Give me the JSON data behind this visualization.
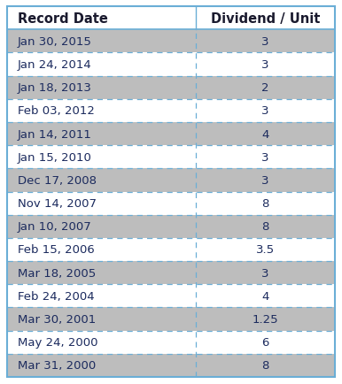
{
  "headers": [
    "Record Date",
    "Dividend / Unit"
  ],
  "rows": [
    [
      "Jan 30, 2015",
      "3"
    ],
    [
      "Jan 24, 2014",
      "3"
    ],
    [
      "Jan 18, 2013",
      "2"
    ],
    [
      "Feb 03, 2012",
      "3"
    ],
    [
      "Jan 14, 2011",
      "4"
    ],
    [
      "Jan 15, 2010",
      "3"
    ],
    [
      "Dec 17, 2008",
      "3"
    ],
    [
      "Nov 14, 2007",
      "8"
    ],
    [
      "Jan 10, 2007",
      "8"
    ],
    [
      "Feb 15, 2006",
      "3.5"
    ],
    [
      "Mar 18, 2005",
      "3"
    ],
    [
      "Feb 24, 2004",
      "4"
    ],
    [
      "Mar 30, 2001",
      "1.25"
    ],
    [
      "May 24, 2000",
      "6"
    ],
    [
      "Mar 31, 2000",
      "8"
    ]
  ],
  "header_bg": "#ffffff",
  "header_text_color": "#1a1a2e",
  "row_bg_odd": "#bdbdbd",
  "row_bg_even": "#ffffff",
  "row_text_color": "#1c2b5e",
  "divider_color": "#6aaed6",
  "border_color": "#6aaed6",
  "font_size": 9.5,
  "header_font_size": 10.5,
  "col_split": 0.575
}
